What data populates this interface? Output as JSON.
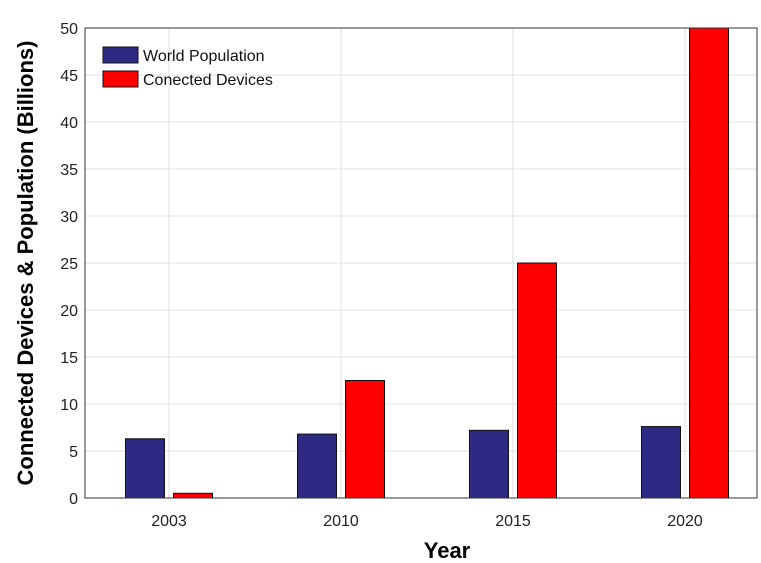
{
  "chart_data": {
    "type": "bar",
    "title": "",
    "xlabel": "Year",
    "ylabel": "Connected Devices & Population (Billions)",
    "categories": [
      "2003",
      "2010",
      "2015",
      "2020"
    ],
    "series": [
      {
        "name": "World Population",
        "values": [
          6.3,
          6.8,
          7.2,
          7.6
        ],
        "color": "#2e2a83"
      },
      {
        "name": "Conected Devices",
        "values": [
          0.5,
          12.5,
          25,
          50
        ],
        "color": "#ff0000"
      }
    ],
    "ylim": [
      0,
      50
    ],
    "yticks": [
      0,
      5,
      10,
      15,
      20,
      25,
      30,
      35,
      40,
      45,
      50
    ],
    "grid": true,
    "legend_position": "top-left"
  }
}
